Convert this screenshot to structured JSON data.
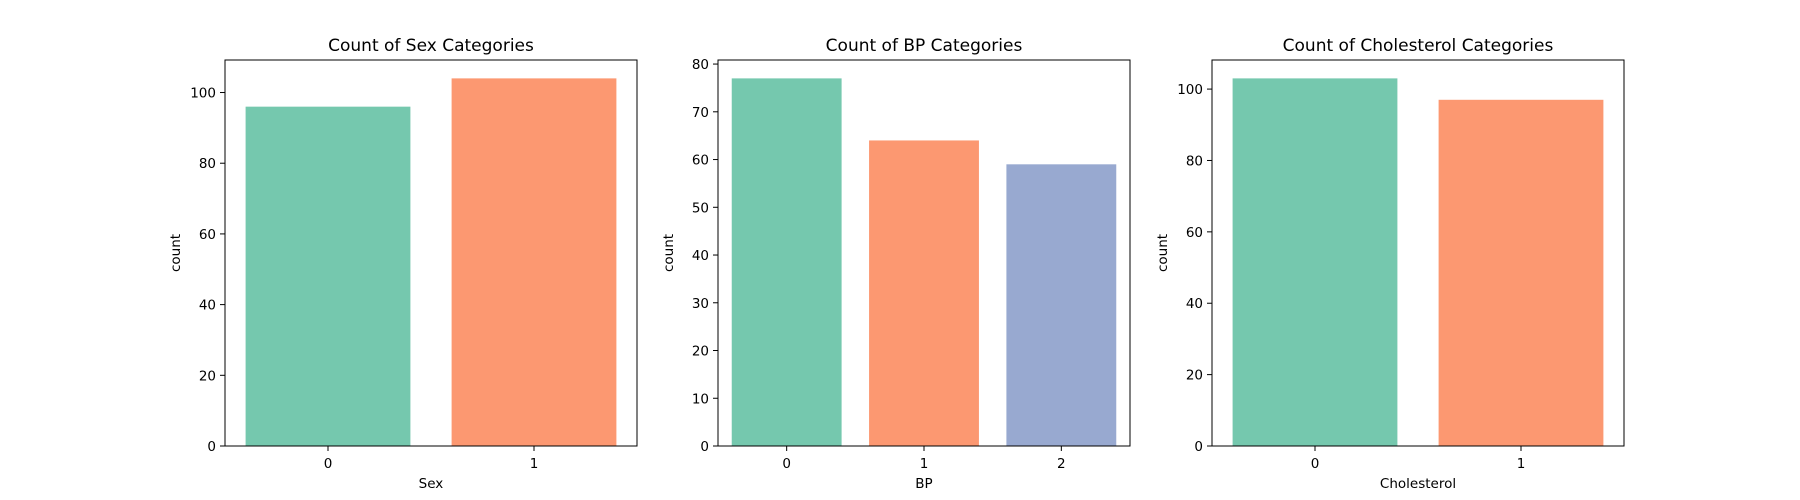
{
  "chart_data": [
    {
      "type": "bar",
      "title": "Count of Sex Categories",
      "xlabel": "Sex",
      "ylabel": "count",
      "categories": [
        "0",
        "1"
      ],
      "values": [
        96,
        104
      ],
      "ylim": [
        0,
        109.2
      ],
      "yticks": [
        "0",
        "20",
        "40",
        "60",
        "80",
        "100"
      ],
      "colors": [
        "#66c2a5",
        "#fc8d62"
      ],
      "grid": false
    },
    {
      "type": "bar",
      "title": "Count of BP Categories",
      "xlabel": "BP",
      "ylabel": "count",
      "categories": [
        "0",
        "1",
        "2"
      ],
      "values": [
        77,
        64,
        59
      ],
      "ylim": [
        0,
        80.85
      ],
      "yticks": [
        "0",
        "10",
        "20",
        "30",
        "40",
        "50",
        "60",
        "70",
        "80"
      ],
      "colors": [
        "#66c2a5",
        "#fc8d62",
        "#8da0cb"
      ],
      "grid": false
    },
    {
      "type": "bar",
      "title": "Count of Cholesterol Categories",
      "xlabel": "Cholesterol",
      "ylabel": "count",
      "categories": [
        "0",
        "1"
      ],
      "values": [
        103,
        97
      ],
      "ylim": [
        0,
        108.15
      ],
      "yticks": [
        "0",
        "20",
        "40",
        "60",
        "80",
        "100"
      ],
      "colors": [
        "#66c2a5",
        "#fc8d62"
      ],
      "grid": false
    }
  ]
}
